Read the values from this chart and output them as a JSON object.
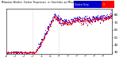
{
  "title": "Milwaukee Weather  Outdoor Temperature  vs  Heat Index  per Minute  (24 Hours)",
  "background_color": "#ffffff",
  "plot_bg_color": "#ffffff",
  "ylim": [
    28,
    88
  ],
  "ytick_vals": [
    30,
    40,
    50,
    60,
    70,
    80
  ],
  "ytick_labels": [
    "30",
    "40",
    "50",
    "60",
    "70",
    "80"
  ],
  "grid_color": "#aaaaaa",
  "temp_color": "#ff0000",
  "heat_color": "#0000ff",
  "dot_size": 0.6,
  "n_minutes": 1440,
  "legend_blue_label": "Outdoor Temp",
  "legend_red_label": "Heat Index",
  "xtick_hours": [
    0,
    2,
    4,
    6,
    8,
    10,
    12,
    14,
    16,
    18,
    20,
    22
  ],
  "xtick_labels": [
    "12\nAM",
    "2\nAM",
    "4\nAM",
    "6\nAM",
    "8\nAM",
    "10\nAM",
    "12\nPM",
    "2\nPM",
    "4\nPM",
    "6\nPM",
    "8\nPM",
    "10\nPM"
  ]
}
